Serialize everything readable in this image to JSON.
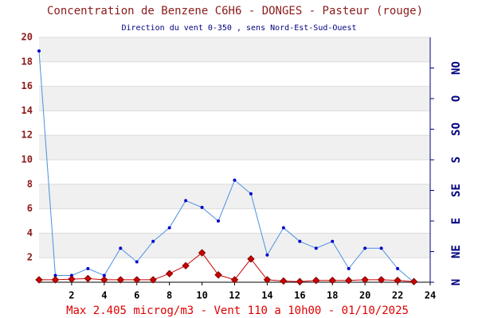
{
  "chart_data": {
    "type": "line",
    "title": "Concentration de Benzene C6H6  -   DONGES - Pasteur (rouge)",
    "subtitle": "Direction du vent 0-350 , sens Nord-Est-Sud-Ouest",
    "footer": "Max 2.405 microg/m3 - Vent 110  a 10h00 - 01/10/2025",
    "x": [
      0,
      1,
      2,
      3,
      4,
      5,
      6,
      7,
      8,
      9,
      10,
      11,
      12,
      13,
      14,
      15,
      16,
      17,
      18,
      19,
      20,
      21,
      22,
      23
    ],
    "xlim": [
      0,
      24
    ],
    "xticks": [
      2,
      4,
      6,
      8,
      10,
      12,
      14,
      16,
      18,
      20,
      22,
      24
    ],
    "ylim": [
      0,
      20
    ],
    "yticks": [
      2,
      4,
      6,
      8,
      10,
      12,
      14,
      16,
      18,
      20
    ],
    "y2lim": [
      0,
      360
    ],
    "y2ticks": [
      {
        "value": 0,
        "label": "N"
      },
      {
        "value": 45,
        "label": "NE"
      },
      {
        "value": 90,
        "label": "E"
      },
      {
        "value": 135,
        "label": "SE"
      },
      {
        "value": 180,
        "label": "S"
      },
      {
        "value": 225,
        "label": "SO"
      },
      {
        "value": 270,
        "label": "O"
      },
      {
        "value": 315,
        "label": "NO"
      }
    ],
    "grid": true,
    "series": [
      {
        "color": "#4a90e2",
        "axis": "y2",
        "values": [
          340,
          10,
          10,
          20,
          10,
          50,
          30,
          60,
          80,
          120,
          110,
          90,
          150,
          130,
          40,
          80,
          60,
          50,
          60,
          20,
          50,
          50,
          20,
          0
        ]
      },
      {
        "color": "#cc0000",
        "values": [
          0.2,
          0.2,
          0.25,
          0.3,
          0.2,
          0.2,
          0.2,
          0.2,
          0.7,
          1.35,
          2.405,
          0.6,
          0.2,
          1.9,
          0.2,
          0.1,
          0.05,
          0.15,
          0.15,
          0.15,
          0.2,
          0.2,
          0.15,
          0.05
        ]
      }
    ]
  }
}
